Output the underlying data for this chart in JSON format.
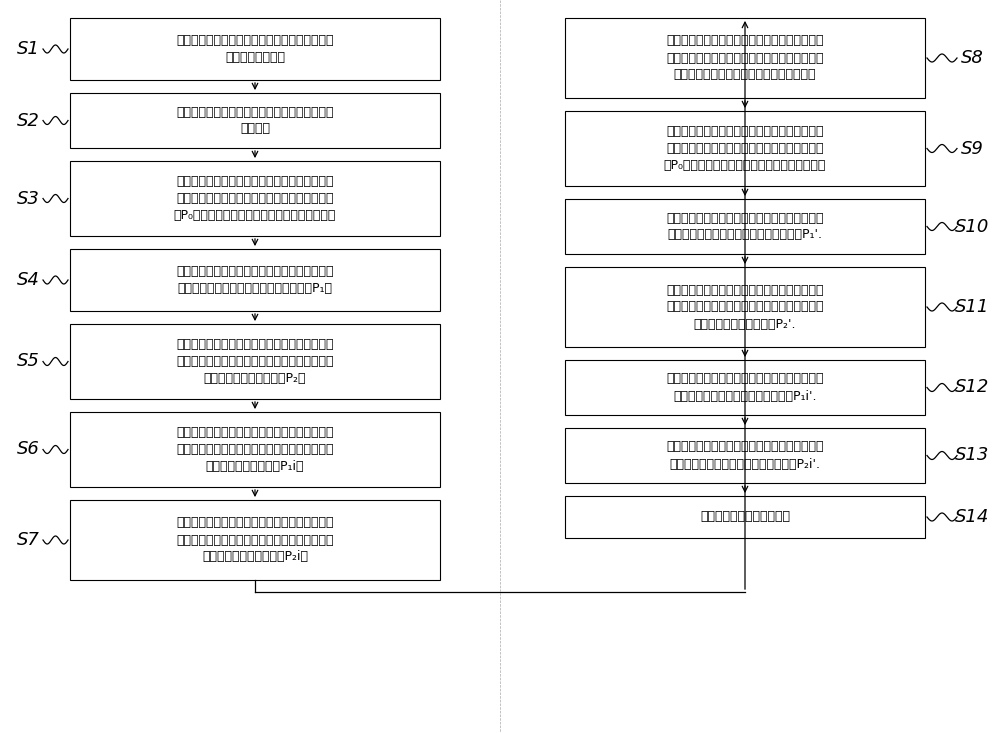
{
  "background_color": "#ffffff",
  "left_steps": [
    {
      "label": "S1",
      "text": "打开第二真空室舱门，将测试材料放入测试材料\n盒中，关闭舱门。"
    },
    {
      "label": "S2",
      "text": "打开辐射灯对测试材料进行加热，并稳定测试材\n料温度。"
    },
    {
      "label": "S3",
      "text": "开启第二角阀和第三角阀，启动干泵，启动离子\n规，当离子规测到的第一真空室为预设的第十压\n力P₀时，关闭第二角阀，开启第一角阀和分子泵"
    },
    {
      "label": "S4",
      "text": "当离子规的读数趋于稳定后，记录离子规的读数\n为第一真空室的所有气体组分的第一全压P₁。"
    },
    {
      "label": "S5",
      "text": "关闭第三角阀，开启第四角阀，当离子规的读数\n趋于稳定后，记录离子规的读数为第二真空室的\n所有气体组分的第二全压P₂。"
    },
    {
      "label": "S6",
      "text": "启动质谱计，打开第五角阀，当质谱计的读数趋\n于稳定后，记录质谱计的读数为第一真空室的某\n一气体组分的第一分压P₁i。"
    },
    {
      "label": "S7",
      "text": "关闭第五角阀，开启第六角阀，当质谱计的读数\n趋于稳定后，记录质谱计的读数为第二真空室的\n某一气体组分的第二分压P₂i。"
    }
  ],
  "right_steps": [
    {
      "label": "S8",
      "text": "关闭第一角阀、第四角阀，打开第七角阀，将氮\n气充入第二真空室，当真空环境被破坏后，关闭\n第七角阀，停止充入氮气，移除测试材料。"
    },
    {
      "label": "S9",
      "text": "开启第二角阀和第三角阀，启动干泵，启动离子\n规，当离子规测到的第一真空室为预设的第十压\n力P₀时，关闭第二角阀，开启第一角阀和分子泵"
    },
    {
      "label": "S10",
      "text": "当离子规的读数趋于稳定后，记录离子规的读数\n为第一真空室的所有气体组分的第三全压P₁'."
    },
    {
      "label": "S11",
      "text": "关闭第三角阀，开启第四角阀，当离子规的读数\n趋于稳定后，记录离子规的读数为第二真空室的\n所有气体组分的第四全压P₂'."
    },
    {
      "label": "S12",
      "text": "启动质谱计，打开第五角阀，记录质谱计的读数\n为第一真空室的第二分气体第三分压P₁i'."
    },
    {
      "label": "S13",
      "text": "关闭第五角阀，开启第六角阀，记录质谱计的读\n数为第二真空室的第二分气体第四分压P₂i'."
    },
    {
      "label": "S14",
      "text": "测试完毕，关闭所有仪器。"
    }
  ],
  "box_border_color": "#000000",
  "box_fill_color": "#ffffff",
  "arrow_color": "#000000",
  "label_color": "#000000",
  "text_color": "#000000",
  "font_size": 9.0,
  "label_font_size": 13
}
